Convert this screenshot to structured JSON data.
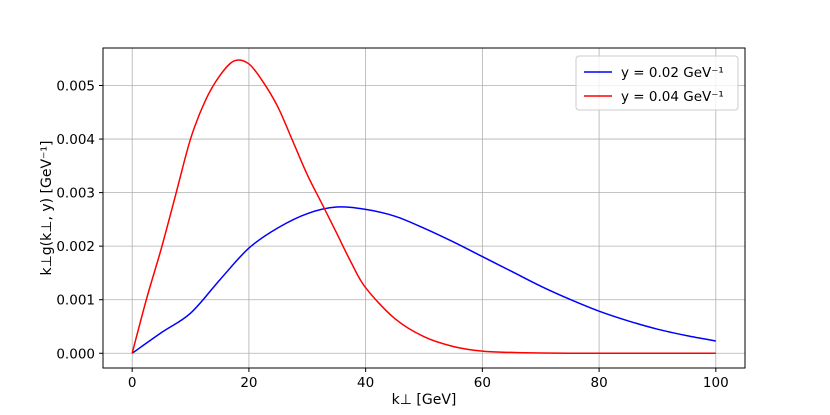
{
  "chart_data": {
    "type": "line",
    "xlabel": "k⊥ [GeV]",
    "ylabel": "k⊥g(k⊥, y) [GeV⁻¹]",
    "xlim": [
      -5,
      105
    ],
    "ylim": [
      -0.000275,
      0.0057
    ],
    "xticks": [
      "0",
      "20",
      "40",
      "60",
      "80",
      "100"
    ],
    "yticks": [
      "0.000",
      "0.001",
      "0.002",
      "0.003",
      "0.004",
      "0.005"
    ],
    "grid": true,
    "legend_position": "top-right",
    "series": [
      {
        "name": "y = 0.02 GeV⁻¹",
        "color": "#0000ff",
        "x": [
          0,
          5,
          10,
          15,
          20,
          25,
          30,
          35,
          40,
          45,
          50,
          55,
          60,
          65,
          70,
          75,
          80,
          85,
          90,
          95,
          100
        ],
        "y": [
          0.0,
          0.000385,
          0.000749,
          0.001369,
          0.001964,
          0.002343,
          0.002607,
          0.00273,
          0.002686,
          0.00256,
          0.002336,
          0.002081,
          0.001805,
          0.00153,
          0.001253,
          0.001007,
          0.000786,
          0.000604,
          0.00045,
          0.00033,
          0.00023
        ]
      },
      {
        "name": "y = 0.04 GeV⁻¹",
        "color": "#ff0000",
        "x": [
          0,
          2.5,
          5,
          7.5,
          10,
          12.5,
          15,
          17.5,
          20,
          22.5,
          25,
          27.5,
          30,
          32.5,
          35,
          37.5,
          40,
          45,
          50,
          55,
          60,
          65,
          70,
          75,
          80,
          85,
          90,
          95,
          100
        ],
        "y": [
          0.0,
          0.00103,
          0.00196,
          0.00298,
          0.004002,
          0.00471,
          0.005181,
          0.00546,
          0.005402,
          0.005054,
          0.00459,
          0.003965,
          0.003335,
          0.002795,
          0.002251,
          0.0017,
          0.001225,
          0.000648,
          0.000309,
          0.000127,
          3.9e-05,
          1.6e-05,
          4e-06,
          1e-06,
          0.0,
          0.0,
          0.0,
          0.0,
          0.0
        ]
      }
    ]
  }
}
